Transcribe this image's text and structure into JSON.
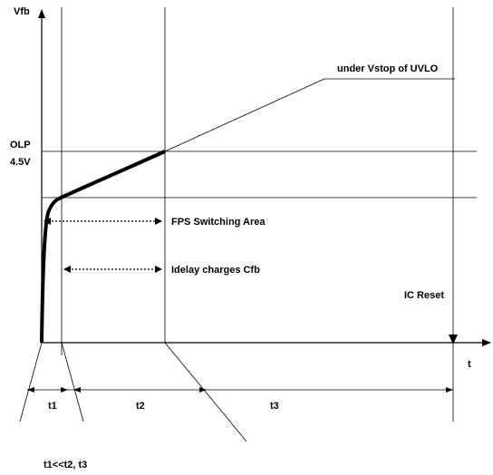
{
  "labels": {
    "y_axis": "Vfb",
    "x_axis": "t",
    "olp_line1": "OLP",
    "olp_line2": "4.5V",
    "uvlo": "under Vstop of UVLO",
    "fps_area": "FPS Switching Area",
    "idelay": "Idelay charges Cfb",
    "ic_reset": "IC Reset",
    "t1": "t1",
    "t2": "t2",
    "t3": "t3",
    "relation": "t1<<t2, t3"
  }
}
